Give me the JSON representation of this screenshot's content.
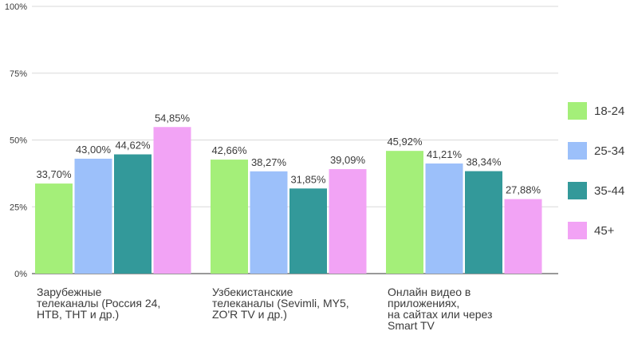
{
  "chart_data": {
    "type": "bar",
    "categories": [
      [
        "Зарубежные",
        "телеканалы (Россия 24,",
        "НТВ, ТНТ и др.)"
      ],
      [
        "Узбекистанские",
        "телеканалы (Sevimli, MY5,",
        "ZO'R TV и др.)"
      ],
      [
        "Онлайн видео в",
        "приложениях,",
        "на сайтах или через",
        "Smart TV"
      ]
    ],
    "series": [
      {
        "name": "18-24",
        "color": "#a4ef79",
        "values": [
          33.7,
          42.66,
          45.92
        ],
        "labels": [
          "33,70%",
          "42,66%",
          "45,92%"
        ]
      },
      {
        "name": "25-34",
        "color": "#9cc0fa",
        "values": [
          43.0,
          38.27,
          41.21
        ],
        "labels": [
          "43,00%",
          "38,27%",
          "41,21%"
        ]
      },
      {
        "name": "35-44",
        "color": "#33999a",
        "values": [
          44.62,
          31.85,
          38.34
        ],
        "labels": [
          "44,62%",
          "31,85%",
          "38,34%"
        ]
      },
      {
        "name": "45+",
        "color": "#f2a3f5",
        "values": [
          54.85,
          39.09,
          27.88
        ],
        "labels": [
          "54,85%",
          "39,09%",
          "27,88%"
        ]
      }
    ],
    "y_ticks": [
      "0%",
      "25%",
      "50%",
      "75%",
      "100%"
    ],
    "ylim": [
      0,
      100
    ],
    "legend_position": "right",
    "grid": true
  }
}
